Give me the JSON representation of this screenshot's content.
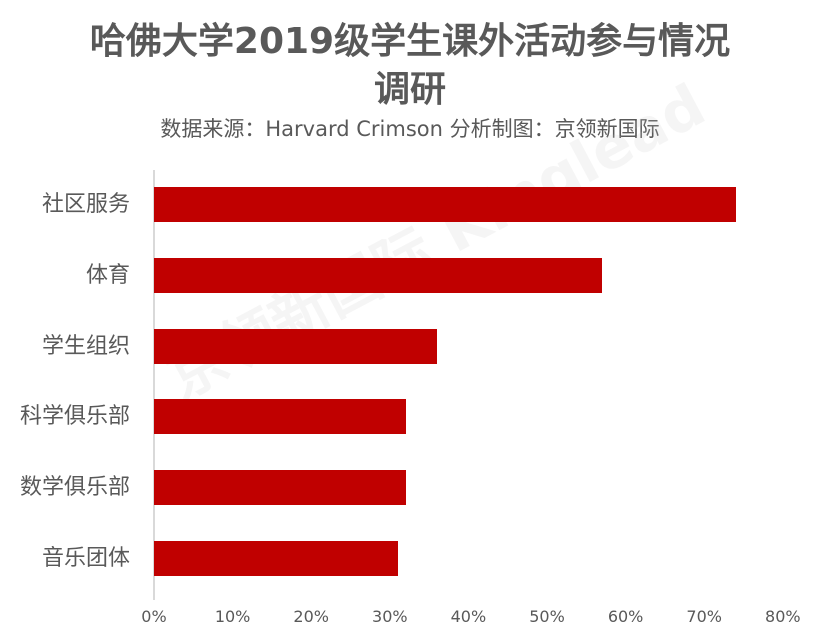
{
  "header": {
    "title_line1": "哈佛大学2019级学生课外活动参与情况",
    "title_line2": "调研",
    "subtitle": "数据来源：Harvard Crimson    分析制图：京领新国际"
  },
  "watermark": "京领新国际 Kinglead",
  "colors": {
    "bar": "#c00000",
    "axis": "#d9d9d9",
    "text": "#595959"
  },
  "axis": {
    "ticks": [
      "0%",
      "10%",
      "20%",
      "30%",
      "40%",
      "50%",
      "60%",
      "70%",
      "80%"
    ]
  },
  "categories": [
    {
      "label": "社区服务",
      "value": 74
    },
    {
      "label": "体育",
      "value": 57
    },
    {
      "label": "学生组织",
      "value": 36
    },
    {
      "label": "科学俱乐部",
      "value": 32
    },
    {
      "label": "数学俱乐部",
      "value": 32
    },
    {
      "label": "音乐团体",
      "value": 31
    }
  ],
  "chart_data": {
    "type": "bar",
    "orientation": "horizontal",
    "title": "哈佛大学2019级学生课外活动参与情况调研",
    "subtitle": "数据来源：Harvard Crimson    分析制图：京领新国际",
    "categories": [
      "社区服务",
      "体育",
      "学生组织",
      "科学俱乐部",
      "数学俱乐部",
      "音乐团体"
    ],
    "values": [
      74,
      57,
      36,
      32,
      32,
      31
    ],
    "unit": "%",
    "xlabel": "",
    "ylabel": "",
    "xlim": [
      0,
      80
    ],
    "xticks": [
      "0%",
      "10%",
      "20%",
      "30%",
      "40%",
      "50%",
      "60%",
      "70%",
      "80%"
    ],
    "grid": false,
    "legend": null
  }
}
